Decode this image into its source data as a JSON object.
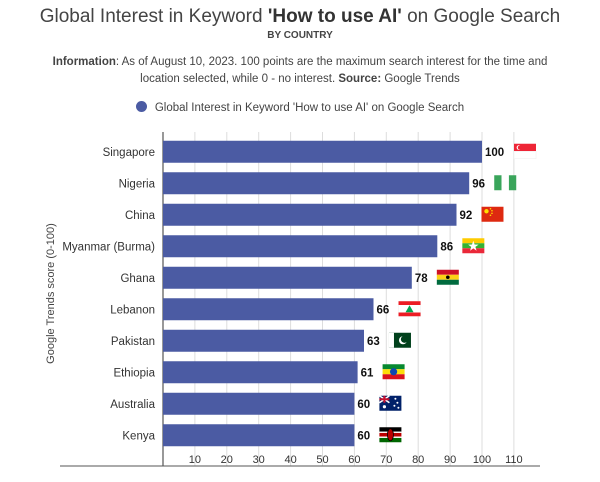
{
  "title": {
    "prefix": "Global Interest in Keyword ",
    "keyword": "'How to use AI'",
    "suffix": " on Google Search"
  },
  "subtitle": "BY COUNTRY",
  "info": {
    "label1": "Information",
    "text1": ": As of August 10, 2023. 100 points are the maximum search interest for the time and location selected, while 0 - no interest. ",
    "label2": "Source:",
    "text2": " Google Trends"
  },
  "colors": {
    "bar": "#4b5ba3",
    "axis": "#555555",
    "grid": "#dddddd"
  },
  "chart_data": {
    "type": "bar",
    "orientation": "horizontal",
    "categories": [
      "Singapore",
      "Nigeria",
      "China",
      "Myanmar (Burma)",
      "Ghana",
      "Lebanon",
      "Pakistan",
      "Ethiopia",
      "Australia",
      "Kenya"
    ],
    "series": [
      {
        "name": "Global Interest in Keyword 'How to use AI' on Google Search",
        "values": [
          100,
          96,
          92,
          86,
          78,
          66,
          63,
          61,
          60,
          60
        ]
      }
    ],
    "value_labels": [
      "100",
      "96",
      "92",
      "86",
      "78",
      "66",
      "63",
      "61",
      "60",
      "60"
    ],
    "flags": [
      "flag-singapore-icon",
      "flag-nigeria-icon",
      "flag-china-icon",
      "flag-myanmar-icon",
      "flag-ghana-icon",
      "flag-lebanon-icon",
      "flag-pakistan-icon",
      "flag-ethiopia-icon",
      "flag-australia-icon",
      "flag-kenya-icon"
    ],
    "xlim": [
      0,
      110
    ],
    "xticks": [
      10,
      20,
      30,
      40,
      50,
      60,
      70,
      80,
      90,
      100,
      110
    ],
    "xtick_labels": [
      "10",
      "20",
      "30",
      "40",
      "50",
      "60",
      "70",
      "80",
      "90",
      "100",
      "110"
    ],
    "xlabel": "",
    "ylabel": "Google Trends score (0-100)",
    "grid": true,
    "legend": "top"
  }
}
